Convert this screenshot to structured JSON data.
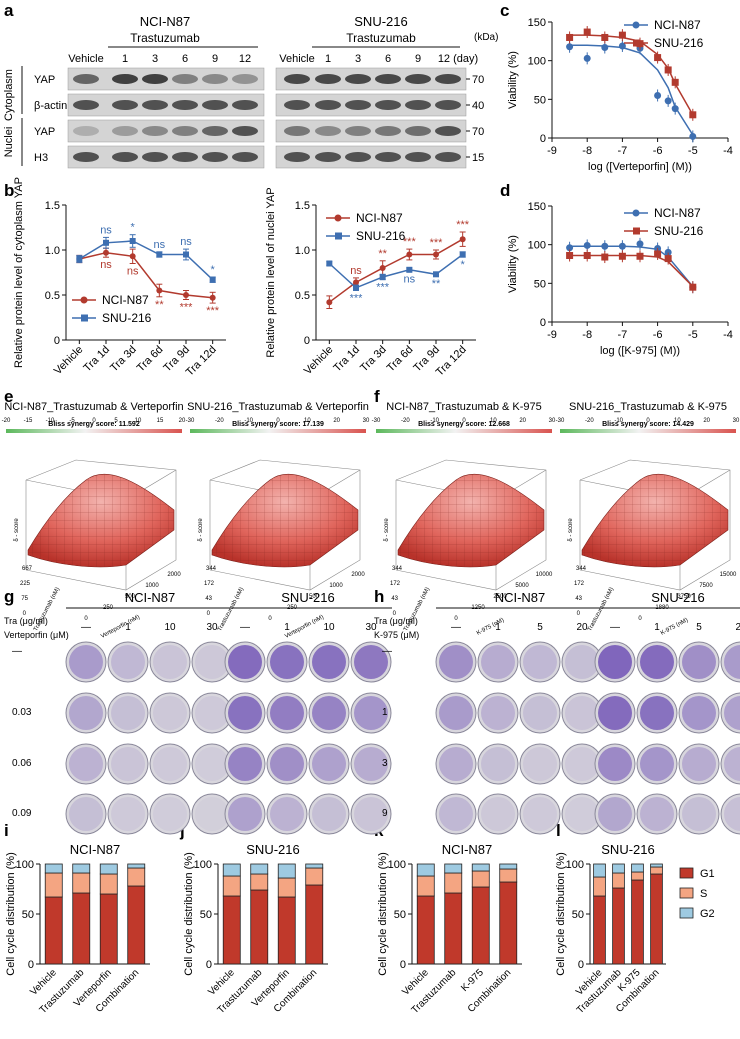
{
  "panel_labels": [
    "a",
    "b",
    "c",
    "d",
    "e",
    "f",
    "g",
    "h",
    "i",
    "j",
    "k",
    "l"
  ],
  "panel_a": {
    "group_left": "NCI-N87",
    "group_right": "SNU-216",
    "treatment_label": "Trastuzumab",
    "lanes_left": [
      "Vehicle",
      "1",
      "3",
      "6",
      "9",
      "12"
    ],
    "lanes_right": [
      "Vehicle",
      "1",
      "3",
      "6",
      "9",
      "12 (day)"
    ],
    "kda_label": "(kDa)",
    "fraction_labels": [
      "Cytoplasm",
      "Nuclei"
    ],
    "band_rows": [
      {
        "protein": "YAP",
        "kda": "70"
      },
      {
        "protein": "β-actin",
        "kda": "40"
      },
      {
        "protein": "YAP",
        "kda": "70"
      },
      {
        "protein": "H3",
        "kda": "15"
      }
    ]
  },
  "chart_data": [
    {
      "id": "b-left",
      "type": "line",
      "ylabel": "Relative protein level of cytoplasm YAP",
      "categories": [
        "Vehicle",
        "Tra 1d",
        "Tra 3d",
        "Tra 6d",
        "Tra 9d",
        "Tra 12d"
      ],
      "ylim": [
        0,
        1.5
      ],
      "yticks": [
        "0",
        "0.5",
        "1.0",
        "1.5"
      ],
      "legend_position": "bottom-left",
      "series": [
        {
          "name": "NCI-N87",
          "color": "#b23a2e",
          "values": [
            0.9,
            0.97,
            0.93,
            0.55,
            0.5,
            0.47
          ],
          "err": [
            0.04,
            0.05,
            0.08,
            0.07,
            0.05,
            0.06
          ],
          "sig": [
            "",
            "ns",
            "ns",
            "**",
            "***",
            "***"
          ]
        },
        {
          "name": "SNU-216",
          "color": "#3e6fb1",
          "values": [
            0.9,
            1.08,
            1.1,
            0.95,
            0.95,
            0.67
          ],
          "err": [
            0.04,
            0.06,
            0.07,
            0.03,
            0.06,
            0.03
          ],
          "sig": [
            "",
            "ns",
            "*",
            "ns",
            "ns",
            "*"
          ]
        }
      ]
    },
    {
      "id": "b-right",
      "type": "line",
      "ylabel": "Relative protein level of nuclei YAP",
      "categories": [
        "Vehicle",
        "Tra 1d",
        "Tra 3d",
        "Tra 6d",
        "Tra 9d",
        "Tra 12d"
      ],
      "ylim": [
        0,
        1.5
      ],
      "yticks": [
        "0",
        "0.5",
        "1.0",
        "1.5"
      ],
      "legend_position": "top-left",
      "series": [
        {
          "name": "NCI-N87",
          "color": "#b23a2e",
          "values": [
            0.42,
            0.64,
            0.8,
            0.95,
            0.95,
            1.12
          ],
          "err": [
            0.07,
            0.05,
            0.08,
            0.06,
            0.05,
            0.08
          ],
          "sig": [
            "",
            "ns",
            "**",
            "***",
            "***",
            "***"
          ]
        },
        {
          "name": "SNU-216",
          "color": "#3e6fb1",
          "values": [
            0.85,
            0.58,
            0.7,
            0.78,
            0.73,
            0.95
          ],
          "err": [
            0.02,
            0.03,
            0.03,
            0.02,
            0.02,
            0.03
          ],
          "sig": [
            "",
            "***",
            "***",
            "ns",
            "**",
            "*"
          ]
        }
      ]
    },
    {
      "id": "c",
      "type": "line",
      "xlabel": "log ([Verteporfin] (M))",
      "ylabel": "Viability (%)",
      "xlim": [
        -9,
        -4
      ],
      "xticks": [
        "-9",
        "-8",
        "-7",
        "-6",
        "-5",
        "-4"
      ],
      "ylim": [
        0,
        150
      ],
      "yticks": [
        "0",
        "50",
        "100",
        "150"
      ],
      "legend_position": "top-right",
      "series": [
        {
          "name": "NCI-N87",
          "color": "#3e6fb1",
          "marker": "circle",
          "x": [
            -8.5,
            -8,
            -7.5,
            -7,
            -6.5,
            -6,
            -5.7,
            -5.5,
            -5
          ],
          "y": [
            118,
            103,
            117,
            119,
            116,
            55,
            48,
            38,
            2
          ],
          "fit": [
            120,
            120,
            119,
            117,
            110,
            88,
            65,
            40,
            4
          ]
        },
        {
          "name": "SNU-216",
          "color": "#b23a2e",
          "marker": "square",
          "x": [
            -8.5,
            -8,
            -7.5,
            -7,
            -6.5,
            -6,
            -5.7,
            -5.5,
            -5
          ],
          "y": [
            130,
            137,
            130,
            133,
            122,
            104,
            88,
            72,
            30
          ],
          "fit": [
            133,
            133,
            132,
            130,
            125,
            108,
            90,
            70,
            30
          ]
        }
      ]
    },
    {
      "id": "d",
      "type": "line",
      "xlabel": "log ([K-975] (M))",
      "ylabel": "Viability (%)",
      "xlim": [
        -9,
        -4
      ],
      "xticks": [
        "-9",
        "-8",
        "-7",
        "-6",
        "-5",
        "-4"
      ],
      "ylim": [
        0,
        150
      ],
      "yticks": [
        "0",
        "50",
        "100",
        "150"
      ],
      "legend_position": "top-right",
      "series": [
        {
          "name": "NCI-N87",
          "color": "#3e6fb1",
          "marker": "circle",
          "x": [
            -8.5,
            -8,
            -7.5,
            -7,
            -6.5,
            -6,
            -5.7,
            -5
          ],
          "y": [
            96,
            99,
            98,
            98,
            101,
            95,
            90,
            45
          ],
          "fit": [
            98,
            98,
            98,
            98,
            97,
            94,
            84,
            46
          ]
        },
        {
          "name": "SNU-216",
          "color": "#b23a2e",
          "marker": "square",
          "x": [
            -8.5,
            -8,
            -7.5,
            -7,
            -6.5,
            -6,
            -5.7,
            -5
          ],
          "y": [
            86,
            86,
            84,
            85,
            85,
            88,
            82,
            45
          ],
          "fit": [
            86,
            86,
            86,
            86,
            86,
            84,
            78,
            46
          ]
        }
      ]
    },
    {
      "id": "i",
      "type": "bar",
      "stacked": true,
      "title": "NCI-N87",
      "ylabel": "Cell cycle distribution (%)",
      "categories": [
        "Vehicle",
        "Trastuzumab",
        "Verteporfin",
        "Combination"
      ],
      "ylim": [
        0,
        100
      ],
      "yticks": [
        "0",
        "50",
        "100"
      ],
      "series": [
        {
          "name": "G1",
          "color": "#c0392b",
          "values": [
            67,
            71,
            70,
            78
          ]
        },
        {
          "name": "S",
          "color": "#f4a582",
          "values": [
            24,
            20,
            20,
            18
          ]
        },
        {
          "name": "G2",
          "color": "#9ecae1",
          "values": [
            9,
            9,
            10,
            4
          ]
        }
      ]
    },
    {
      "id": "j",
      "type": "bar",
      "stacked": true,
      "title": "SNU-216",
      "ylabel": "Cell cycle distribution (%)",
      "categories": [
        "Vehicle",
        "Trastuzumab",
        "Verteporfin",
        "Combination"
      ],
      "ylim": [
        0,
        100
      ],
      "yticks": [
        "0",
        "50",
        "100"
      ],
      "series": [
        {
          "name": "G1",
          "color": "#c0392b",
          "values": [
            68,
            74,
            67,
            79
          ]
        },
        {
          "name": "S",
          "color": "#f4a582",
          "values": [
            20,
            16,
            19,
            17
          ]
        },
        {
          "name": "G2",
          "color": "#9ecae1",
          "values": [
            12,
            10,
            14,
            4
          ]
        }
      ]
    },
    {
      "id": "k",
      "type": "bar",
      "stacked": true,
      "title": "NCI-N87",
      "ylabel": "Cell cycle distribution (%)",
      "categories": [
        "Vehicle",
        "Trastuzumab",
        "K-975",
        "Combination"
      ],
      "ylim": [
        0,
        100
      ],
      "yticks": [
        "0",
        "50",
        "100"
      ],
      "series": [
        {
          "name": "G1",
          "color": "#c0392b",
          "values": [
            68,
            71,
            77,
            82
          ]
        },
        {
          "name": "S",
          "color": "#f4a582",
          "values": [
            20,
            20,
            16,
            13
          ]
        },
        {
          "name": "G2",
          "color": "#9ecae1",
          "values": [
            12,
            9,
            7,
            5
          ]
        }
      ]
    },
    {
      "id": "l",
      "type": "bar",
      "stacked": true,
      "title": "SNU-216",
      "ylabel": "Cell cycle distribution (%)",
      "categories": [
        "Vehicle",
        "Trastuzumab",
        "K-975",
        "Combination"
      ],
      "ylim": [
        0,
        100
      ],
      "yticks": [
        "0",
        "50",
        "100"
      ],
      "legend": [
        "G1",
        "S",
        "G2"
      ],
      "legend_position": "right",
      "series": [
        {
          "name": "G1",
          "color": "#c0392b",
          "values": [
            68,
            76,
            84,
            90
          ]
        },
        {
          "name": "S",
          "color": "#f4a582",
          "values": [
            19,
            15,
            8,
            7
          ]
        },
        {
          "name": "G2",
          "color": "#9ecae1",
          "values": [
            13,
            9,
            8,
            3
          ]
        }
      ]
    }
  ],
  "panel_e": [
    {
      "title": "NCI-N87_Trastuzumab & Verteporfin",
      "score_label": "Bliss synergy score: 11.592",
      "scale": [
        "-20",
        "-15",
        "-10",
        "-5",
        "0",
        "5",
        "10",
        "15",
        "20"
      ],
      "axis1": "Trastuzumab (nM)",
      "axis1_ticks": [
        "0",
        "75",
        "225",
        "667"
      ],
      "axis2": "Verteporfin (nM)",
      "axis2_ticks": [
        "0",
        "250",
        "500",
        "1000",
        "2000"
      ],
      "zlabel": "δ - score"
    },
    {
      "title": "SNU-216_Trastuzumab & Verteporfin",
      "score_label": "Bliss synergy score: 17.139",
      "scale": [
        "-30",
        "-20",
        "-10",
        "0",
        "10",
        "20",
        "30"
      ],
      "axis1": "Trastuzumab (nM)",
      "axis1_ticks": [
        "0",
        "43",
        "172",
        "344"
      ],
      "axis2": "Verteporfin (nM)",
      "axis2_ticks": [
        "0",
        "250",
        "500",
        "1000",
        "2000"
      ],
      "zlabel": "δ - score"
    }
  ],
  "panel_f": [
    {
      "title": "NCI-N87_Trastuzumab & K-975",
      "score_label": "Bliss synergy score: 12.668",
      "scale": [
        "-30",
        "-20",
        "-10",
        "0",
        "10",
        "20",
        "30"
      ],
      "axis1": "Trastuzumab (nM)",
      "axis1_ticks": [
        "0",
        "43",
        "172",
        "344"
      ],
      "axis2": "K-975 (nM)",
      "axis2_ticks": [
        "0",
        "1250",
        "2500",
        "5000",
        "10000"
      ],
      "zlabel": "δ - score"
    },
    {
      "title": "SNU-216_Trastuzumab & K-975",
      "score_label": "Bliss synergy score: 14.429",
      "scale": [
        "-30",
        "-20",
        "-10",
        "0",
        "10",
        "20",
        "30"
      ],
      "axis1": "Trastuzumab (nM)",
      "axis1_ticks": [
        "0",
        "43",
        "172",
        "344"
      ],
      "axis2": "K-975 (nM)",
      "axis2_ticks": [
        "0",
        "1880",
        "3750",
        "7500",
        "15000"
      ],
      "zlabel": "δ - score"
    }
  ],
  "panel_g": {
    "group_left": "NCI-N87",
    "group_right": "SNU-216",
    "tra_label": "Tra (μg/ml)",
    "drug_label": "Verteporfin (μM)",
    "tra_levels": [
      "—",
      "1",
      "10",
      "30"
    ],
    "drug_levels": [
      "—",
      "0.03",
      "0.06",
      "0.09"
    ],
    "density_left": [
      [
        0.5,
        0.25,
        0.15,
        0.12
      ],
      [
        0.4,
        0.2,
        0.12,
        0.1
      ],
      [
        0.3,
        0.15,
        0.1,
        0.08
      ],
      [
        0.2,
        0.1,
        0.08,
        0.06
      ]
    ],
    "density_right": [
      [
        0.9,
        0.85,
        0.85,
        0.8
      ],
      [
        0.85,
        0.75,
        0.7,
        0.55
      ],
      [
        0.7,
        0.6,
        0.45,
        0.35
      ],
      [
        0.45,
        0.3,
        0.2,
        0.15
      ]
    ]
  },
  "panel_h": {
    "group_left": "NCI-N87",
    "group_right": "SNU-216",
    "tra_label": "Tra (μg/ml)",
    "drug_label": "K-975 (μM)",
    "tra_levels": [
      "—",
      "1",
      "5",
      "20"
    ],
    "drug_levels": [
      "—",
      "1",
      "3",
      "9"
    ],
    "density_left": [
      [
        0.6,
        0.35,
        0.25,
        0.2
      ],
      [
        0.5,
        0.3,
        0.2,
        0.15
      ],
      [
        0.35,
        0.2,
        0.12,
        0.1
      ],
      [
        0.25,
        0.12,
        0.1,
        0.08
      ]
    ],
    "density_right": [
      [
        0.95,
        0.9,
        0.6,
        0.5
      ],
      [
        0.9,
        0.85,
        0.55,
        0.45
      ],
      [
        0.65,
        0.55,
        0.35,
        0.3
      ],
      [
        0.4,
        0.3,
        0.2,
        0.18
      ]
    ]
  }
}
